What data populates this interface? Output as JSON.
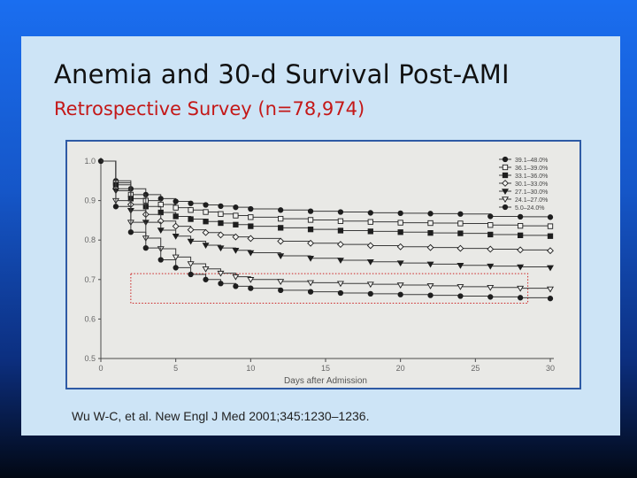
{
  "slide": {
    "title": "Anemia and 30-d Survival Post-AMI",
    "subtitle": "Retrospective Survey (n=78,974)",
    "citation": "Wu W-C, et al. New Engl J Med 2001;345:1230–1236."
  },
  "colors": {
    "background_top": "#1a6ef0",
    "slide_panel": "#cde4f6",
    "title_text": "#111111",
    "subtitle_text": "#c41818",
    "figure_border": "#2e5aa5",
    "highlight_box": "#cc2222"
  },
  "chart_data": {
    "type": "line",
    "xlabel": "Days after Admission",
    "ylabel": "",
    "xlim": [
      0,
      30
    ],
    "ylim": [
      0.5,
      1.0
    ],
    "x_ticks": [
      0,
      5,
      10,
      15,
      20,
      25,
      30
    ],
    "y_ticks": [
      "0.5",
      "0.6",
      "0.7",
      "0.8",
      "0.9",
      "1.0"
    ],
    "grid": false,
    "legend_position": "top-right",
    "series": [
      {
        "name": "39.1–48.0%",
        "marker": "filled-circle",
        "x": [
          0,
          1,
          2,
          3,
          4,
          5,
          6,
          7,
          8,
          9,
          10,
          12,
          14,
          16,
          18,
          20,
          22,
          24,
          26,
          28,
          30
        ],
        "y": [
          1.0,
          0.95,
          0.93,
          0.915,
          0.905,
          0.898,
          0.893,
          0.889,
          0.886,
          0.883,
          0.879,
          0.876,
          0.873,
          0.871,
          0.869,
          0.868,
          0.867,
          0.866,
          0.86,
          0.859,
          0.858
        ]
      },
      {
        "name": "36.1–39.0%",
        "marker": "open-square",
        "x": [
          0,
          1,
          2,
          3,
          4,
          5,
          6,
          7,
          8,
          9,
          10,
          12,
          14,
          16,
          18,
          20,
          22,
          24,
          26,
          28,
          30
        ],
        "y": [
          1.0,
          0.945,
          0.915,
          0.9,
          0.89,
          0.882,
          0.876,
          0.871,
          0.866,
          0.862,
          0.858,
          0.854,
          0.851,
          0.848,
          0.846,
          0.844,
          0.843,
          0.842,
          0.838,
          0.836,
          0.835
        ]
      },
      {
        "name": "33.1–36.0%",
        "marker": "filled-square",
        "x": [
          0,
          1,
          2,
          3,
          4,
          5,
          6,
          7,
          8,
          9,
          10,
          12,
          14,
          16,
          18,
          20,
          22,
          24,
          26,
          28,
          30
        ],
        "y": [
          1.0,
          0.94,
          0.905,
          0.885,
          0.87,
          0.86,
          0.853,
          0.847,
          0.843,
          0.839,
          0.835,
          0.831,
          0.827,
          0.824,
          0.822,
          0.82,
          0.818,
          0.817,
          0.814,
          0.812,
          0.81
        ]
      },
      {
        "name": "30.1–33.0%",
        "marker": "open-diamond",
        "x": [
          0,
          1,
          2,
          3,
          4,
          5,
          6,
          7,
          8,
          9,
          10,
          12,
          14,
          16,
          18,
          20,
          22,
          24,
          26,
          28,
          30
        ],
        "y": [
          1.0,
          0.93,
          0.89,
          0.865,
          0.848,
          0.835,
          0.826,
          0.819,
          0.813,
          0.808,
          0.804,
          0.797,
          0.792,
          0.789,
          0.786,
          0.783,
          0.781,
          0.779,
          0.777,
          0.775,
          0.773
        ]
      },
      {
        "name": "27.1–30.0%",
        "marker": "filled-triangle",
        "x": [
          0,
          1,
          2,
          3,
          4,
          5,
          6,
          7,
          8,
          9,
          10,
          12,
          14,
          16,
          18,
          20,
          22,
          24,
          26,
          28,
          30
        ],
        "y": [
          1.0,
          0.925,
          0.875,
          0.845,
          0.825,
          0.81,
          0.797,
          0.787,
          0.78,
          0.774,
          0.768,
          0.76,
          0.754,
          0.749,
          0.745,
          0.742,
          0.739,
          0.736,
          0.734,
          0.732,
          0.73
        ]
      },
      {
        "name": "24.1–27.0%",
        "marker": "open-triangle",
        "x": [
          0,
          1,
          2,
          3,
          4,
          5,
          6,
          7,
          8,
          9,
          10,
          12,
          14,
          16,
          18,
          20,
          22,
          24,
          26,
          28,
          30
        ],
        "y": [
          1.0,
          0.9,
          0.845,
          0.805,
          0.778,
          0.757,
          0.74,
          0.727,
          0.716,
          0.707,
          0.7,
          0.695,
          0.692,
          0.69,
          0.688,
          0.686,
          0.684,
          0.682,
          0.68,
          0.678,
          0.676
        ]
      },
      {
        "name": "5.0–24.0%",
        "marker": "filled-circle",
        "x": [
          0,
          1,
          2,
          3,
          4,
          5,
          6,
          7,
          8,
          9,
          10,
          12,
          14,
          16,
          18,
          20,
          22,
          24,
          26,
          28,
          30
        ],
        "y": [
          1.0,
          0.885,
          0.82,
          0.78,
          0.75,
          0.73,
          0.713,
          0.7,
          0.69,
          0.683,
          0.678,
          0.673,
          0.669,
          0.666,
          0.664,
          0.662,
          0.66,
          0.658,
          0.656,
          0.654,
          0.652
        ]
      }
    ]
  }
}
